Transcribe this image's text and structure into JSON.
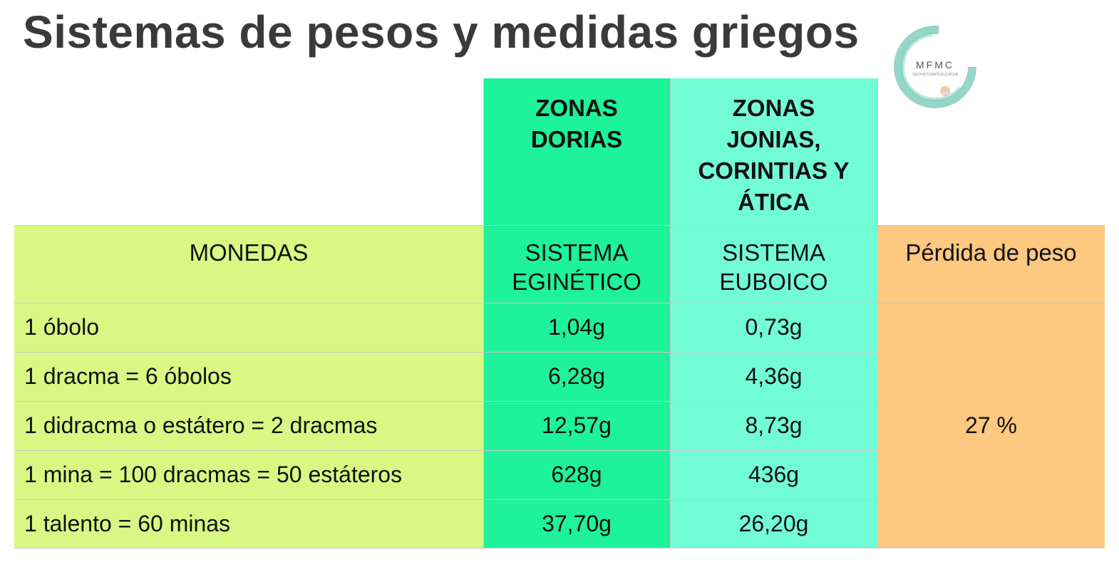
{
  "title": "Sistemas de pesos y medidas griegos",
  "logo": {
    "icon": "mfmc-logo-icon",
    "text": "MFMC",
    "subtext": "GEOHISTOARTEDUCATIVA"
  },
  "table": {
    "zone_headers": {
      "dorias": "ZONAS\nDORIAS",
      "jonias": "ZONAS\nJONIAS,\nCORINTIAS Y\nÁTICA"
    },
    "column_headers": {
      "monedas": "MONEDAS",
      "eginetico": "SISTEMA\nEGINÉTICO",
      "euboico": "SISTEMA\nEUBOICO",
      "perdida": "Pérdida de peso"
    },
    "rows": [
      {
        "moneda": "1 óbolo",
        "eginetico": "1,04g",
        "euboico": "0,73g"
      },
      {
        "moneda": "1 dracma = 6 óbolos",
        "eginetico": "6,28g",
        "euboico": "4,36g"
      },
      {
        "moneda": "1 didracma o estátero = 2 dracmas",
        "eginetico": "12,57g",
        "euboico": "8,73g"
      },
      {
        "moneda": "1 mina = 100 dracmas = 50 estáteros",
        "eginetico": "628g",
        "euboico": "436g"
      },
      {
        "moneda": "1 talento = 60 minas",
        "eginetico": "37,70g",
        "euboico": "26,20g"
      }
    ],
    "perdida_value": "27 %"
  },
  "colors": {
    "dorias": "#1ef29a",
    "jonias": "#72fcd5",
    "monedas": "#d8f883",
    "perdida": "#fdc87f",
    "title": "#3a3a3a"
  }
}
